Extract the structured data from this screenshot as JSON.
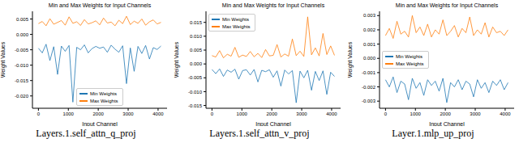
{
  "chart_data": [
    {
      "type": "line",
      "title": "Min and Max Weights for Input Channels",
      "caption": "Layers.1.self_attn_q_proj",
      "x_label": "Input Channel",
      "y_label": "Weight Values",
      "x": [
        0,
        128,
        256,
        384,
        512,
        640,
        768,
        896,
        1024,
        1152,
        1280,
        1408,
        1536,
        1664,
        1792,
        1920,
        2048,
        2176,
        2304,
        2432,
        2560,
        2688,
        2816,
        2944,
        3072,
        3200,
        3328,
        3456,
        3584,
        3712,
        3840,
        3968,
        4096
      ],
      "series": [
        {
          "name": "Min Weights",
          "color": "#1f77b4",
          "values": [
            -0.0045,
            -0.006,
            -0.0032,
            -0.0085,
            -0.004,
            -0.013,
            -0.0038,
            -0.0055,
            -0.0036,
            -0.022,
            -0.0042,
            -0.005,
            -0.0034,
            -0.006,
            -0.0046,
            -0.0039,
            -0.0045,
            -0.0041,
            -0.0058,
            -0.0035,
            -0.0048,
            -0.0058,
            -0.0037,
            -0.016,
            -0.0044,
            -0.012,
            -0.0039,
            -0.0062,
            -0.0036,
            -0.008,
            -0.0043,
            -0.0049,
            -0.0038
          ]
        },
        {
          "name": "Max Weights",
          "color": "#ff7f0e",
          "values": [
            0.0035,
            0.0042,
            0.0028,
            0.0051,
            0.0033,
            0.0039,
            0.0045,
            0.003,
            0.0057,
            0.0036,
            0.0041,
            0.0029,
            0.0048,
            0.0034,
            0.0038,
            0.0044,
            0.0031,
            0.0053,
            0.0037,
            0.004,
            0.0028,
            0.0046,
            0.0035,
            0.0059,
            0.0032,
            0.0043,
            0.0036,
            0.005,
            0.003,
            0.0041,
            0.0047,
            0.0034,
            0.0039
          ]
        }
      ],
      "xlim": [
        -200,
        4300
      ],
      "xticks": [
        0,
        1000,
        2000,
        3000,
        4000
      ],
      "ylim": [
        -0.024,
        0.0075
      ],
      "yticks": [
        {
          "value": -0.02,
          "label": "-0.020"
        },
        {
          "value": -0.015,
          "label": "-0.015"
        },
        {
          "value": -0.01,
          "label": "-0.010"
        },
        {
          "value": -0.005,
          "label": "-0.005"
        },
        {
          "value": 0,
          "label": "0.000"
        },
        {
          "value": 0.005,
          "label": "0.005"
        }
      ],
      "legend": "lower center"
    },
    {
      "type": "line",
      "title": "Min and Max Weights for Input Channels",
      "caption": "Layers.1.self_attn_v_proj",
      "x_label": "Input Channel",
      "y_label": "Weight Values",
      "x": [
        0,
        128,
        256,
        384,
        512,
        640,
        768,
        896,
        1024,
        1152,
        1280,
        1408,
        1536,
        1664,
        1792,
        1920,
        2048,
        2176,
        2304,
        2432,
        2560,
        2688,
        2816,
        2944,
        3072,
        3200,
        3328,
        3456,
        3584,
        3712,
        3840,
        3968,
        4096
      ],
      "series": [
        {
          "name": "Min Weights",
          "color": "#1f77b4",
          "values": [
            -0.002,
            -0.0035,
            -0.0018,
            -0.0045,
            -0.0022,
            -0.003,
            -0.0019,
            -0.0055,
            -0.0024,
            -0.0021,
            -0.004,
            -0.002,
            -0.0065,
            -0.0023,
            -0.0028,
            -0.0021,
            -0.0048,
            -0.0025,
            -0.008,
            -0.0022,
            -0.0036,
            -0.0024,
            -0.014,
            -0.0026,
            -0.005,
            -0.0023,
            -0.0095,
            -0.0027,
            -0.006,
            -0.0025,
            -0.011,
            -0.003,
            -0.0045
          ]
        },
        {
          "name": "Max Weights",
          "color": "#ff7f0e",
          "values": [
            0.003,
            0.0025,
            0.0048,
            0.0022,
            0.0035,
            0.0028,
            0.006,
            0.0024,
            0.0032,
            0.0027,
            0.0045,
            0.0026,
            0.0038,
            0.0023,
            0.0052,
            0.0029,
            0.0031,
            0.007,
            0.0025,
            0.0036,
            0.0028,
            0.009,
            0.003,
            0.0046,
            0.0027,
            0.017,
            0.0033,
            0.0058,
            0.0029,
            0.011,
            0.0034,
            0.0065,
            0.0031
          ]
        }
      ],
      "xlim": [
        -200,
        4300
      ],
      "xticks": [
        0,
        1000,
        2000,
        3000,
        4000
      ],
      "ylim": [
        -0.016,
        0.019
      ],
      "yticks": [
        {
          "value": -0.015,
          "label": "-0.015"
        },
        {
          "value": -0.01,
          "label": "-0.010"
        },
        {
          "value": -0.005,
          "label": "-0.005"
        },
        {
          "value": 0,
          "label": "0.000"
        },
        {
          "value": 0.005,
          "label": "0.005"
        },
        {
          "value": 0.01,
          "label": "0.010"
        },
        {
          "value": 0.015,
          "label": "0.015"
        }
      ],
      "legend": "upper left"
    },
    {
      "type": "line",
      "title": "Min and Max Weights for Input Channels",
      "caption": "Layer.1.mlp_up_proj",
      "x_label": "Input Channel",
      "y_label": "Weight Values",
      "x": [
        0,
        128,
        256,
        384,
        512,
        640,
        768,
        896,
        1024,
        1152,
        1280,
        1408,
        1536,
        1664,
        1792,
        1920,
        2048,
        2176,
        2304,
        2432,
        2560,
        2688,
        2816,
        2944,
        3072,
        3200,
        3328,
        3456,
        3584,
        3712,
        3840,
        3968,
        4096
      ],
      "series": [
        {
          "name": "Min Weights",
          "color": "#1f77b4",
          "values": [
            -0.0015,
            -0.002,
            -0.0013,
            -0.0024,
            -0.0016,
            -0.0018,
            -0.0029,
            -0.0014,
            -0.0021,
            -0.0017,
            -0.0026,
            -0.0015,
            -0.0019,
            -0.0016,
            -0.0023,
            -0.0014,
            -0.0031,
            -0.0017,
            -0.002,
            -0.0015,
            -0.0022,
            -0.0016,
            -0.0018,
            -0.0027,
            -0.0015,
            -0.0021,
            -0.0017,
            -0.0024,
            -0.0016,
            -0.0019,
            -0.0015,
            -0.0022,
            -0.0017
          ]
        },
        {
          "name": "Max Weights",
          "color": "#ff7f0e",
          "values": [
            0.0016,
            0.0021,
            0.0014,
            0.0026,
            0.0017,
            0.0019,
            0.0015,
            0.003,
            0.0018,
            0.0022,
            0.0016,
            0.0024,
            0.0015,
            0.002,
            0.0017,
            0.0027,
            0.0016,
            0.0019,
            0.0023,
            0.0015,
            0.0021,
            0.0018,
            0.0029,
            0.0016,
            0.002,
            0.0017,
            0.0025,
            0.0015,
            0.0022,
            0.0018,
            0.0019,
            0.0016,
            0.002
          ]
        }
      ],
      "xlim": [
        -200,
        4300
      ],
      "xticks": [
        0,
        1000,
        2000,
        3000,
        4000
      ],
      "ylim": [
        -0.0035,
        0.0033
      ],
      "yticks": [
        {
          "value": -0.003,
          "label": "-0.003"
        },
        {
          "value": -0.002,
          "label": "-0.002"
        },
        {
          "value": -0.001,
          "label": "-0.001"
        },
        {
          "value": 0,
          "label": "0.000"
        },
        {
          "value": 0.001,
          "label": "0.001"
        },
        {
          "value": 0.002,
          "label": "0.002"
        },
        {
          "value": 0.003,
          "label": "0.003"
        }
      ],
      "legend": "center left"
    }
  ]
}
